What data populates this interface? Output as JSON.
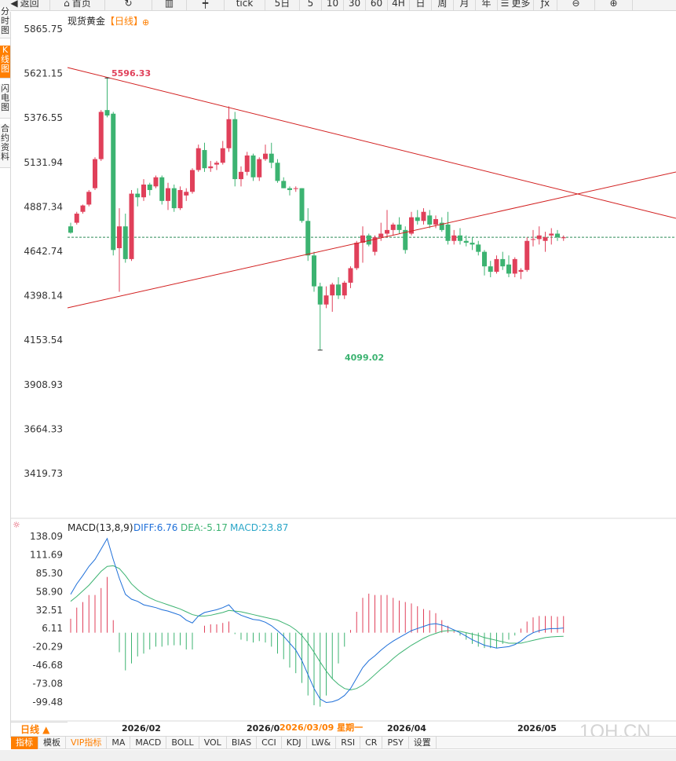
{
  "toolbar": {
    "items": [
      {
        "label": "返回",
        "icon": "back-icon"
      },
      {
        "label": "首页",
        "icon": "home-icon"
      },
      {
        "label": "",
        "icon": "refresh-icon"
      },
      {
        "label": "",
        "icon": "bar-chart-icon"
      },
      {
        "label": "",
        "icon": "candlestick-icon"
      },
      {
        "label": "tick",
        "icon": ""
      },
      {
        "label": "5日",
        "icon": ""
      },
      {
        "label": "5",
        "icon": ""
      },
      {
        "label": "10",
        "icon": ""
      },
      {
        "label": "30",
        "icon": ""
      },
      {
        "label": "60",
        "icon": ""
      },
      {
        "label": "4H",
        "icon": ""
      },
      {
        "label": "日",
        "icon": ""
      },
      {
        "label": "周",
        "icon": ""
      },
      {
        "label": "月",
        "icon": ""
      },
      {
        "label": "年",
        "icon": ""
      },
      {
        "label": "更多",
        "icon": "menu-icon"
      },
      {
        "label": "",
        "icon": "fx-icon"
      },
      {
        "label": "",
        "icon": "zoom-out-icon"
      },
      {
        "label": "",
        "icon": "zoom-in-icon"
      }
    ]
  },
  "side_tabs": [
    {
      "label": "分时图",
      "active": false
    },
    {
      "label": "K线图",
      "active": true
    },
    {
      "label": "闪电图",
      "active": false
    },
    {
      "label": "合约资料",
      "active": false
    }
  ],
  "chart_title": "现货黄金",
  "period_tag": "【日线】",
  "price_axis": [
    "5865.75",
    "5621.15",
    "5376.55",
    "5131.94",
    "4887.34",
    "4642.74",
    "4398.14",
    "4153.54",
    "3908.93",
    "3664.33",
    "3419.73"
  ],
  "high_label": "5596.33",
  "low_label": "4099.02",
  "macd": {
    "title": "MACD(13,8,9)",
    "diff": "DIFF:6.76",
    "dea": "DEA:-5.17",
    "macd": "MACD:23.87",
    "axis": [
      "138.09",
      "111.69",
      "85.30",
      "58.90",
      "32.51",
      "6.11",
      "-20.29",
      "-46.68",
      "-73.08",
      "-99.48"
    ]
  },
  "x_axis": [
    "2026/02",
    "2026/0",
    "2026/04",
    "2026/05"
  ],
  "crosshair_date": "2026/03/09 星期一",
  "period_button": "日线 ▲",
  "indicator_tabs": [
    {
      "label": "指标",
      "active": true,
      "vip": false
    },
    {
      "label": "模板",
      "active": false,
      "vip": false
    },
    {
      "label": "VIP指标",
      "active": false,
      "vip": true
    },
    {
      "label": "MA",
      "active": false,
      "vip": false
    },
    {
      "label": "MACD",
      "active": false,
      "vip": false
    },
    {
      "label": "BOLL",
      "active": false,
      "vip": false
    },
    {
      "label": "VOL",
      "active": false,
      "vip": false
    },
    {
      "label": "BIAS",
      "active": false,
      "vip": false
    },
    {
      "label": "CCI",
      "active": false,
      "vip": false
    },
    {
      "label": "KDJ",
      "active": false,
      "vip": false
    },
    {
      "label": "LW&",
      "active": false,
      "vip": false
    },
    {
      "label": "RSI",
      "active": false,
      "vip": false
    },
    {
      "label": "CR",
      "active": false,
      "vip": false
    },
    {
      "label": "PSY",
      "active": false,
      "vip": false
    },
    {
      "label": "设置",
      "active": false,
      "vip": false
    }
  ],
  "watermark": "1QH.CN",
  "colors": {
    "up": "#e0405a",
    "down": "#3cb371",
    "accent": "#ff7f00",
    "diff": "#1e6fd9",
    "dea": "#3cb371",
    "trendline": "#d22020"
  },
  "chart_data": {
    "type": "candlestick",
    "ohlc": [
      [
        4780,
        4800,
        4740,
        4745
      ],
      [
        4800,
        4860,
        4790,
        4850
      ],
      [
        4860,
        4900,
        4850,
        4895
      ],
      [
        4900,
        4980,
        4890,
        4970
      ],
      [
        4990,
        5160,
        4980,
        5150
      ],
      [
        5150,
        5420,
        5140,
        5410
      ],
      [
        5420,
        5596.33,
        5380,
        5390
      ],
      [
        5400,
        5410,
        4620,
        4650
      ],
      [
        4660,
        4880,
        4420,
        4780
      ],
      [
        4780,
        4850,
        4580,
        4600
      ],
      [
        4600,
        4980,
        4590,
        4960
      ],
      [
        4960,
        4990,
        4890,
        4940
      ],
      [
        4940,
        5040,
        4920,
        5010
      ],
      [
        5010,
        5020,
        4950,
        4980
      ],
      [
        5000,
        5060,
        4990,
        5050
      ],
      [
        5050,
        5060,
        4900,
        4920
      ],
      [
        4920,
        5020,
        4870,
        4990
      ],
      [
        4990,
        5010,
        4860,
        4880
      ],
      [
        4880,
        5000,
        4870,
        4980
      ],
      [
        4950,
        4990,
        4920,
        4970
      ],
      [
        4970,
        5100,
        4960,
        5090
      ],
      [
        5090,
        5230,
        5080,
        5210
      ],
      [
        5200,
        5240,
        5080,
        5100
      ],
      [
        5100,
        5140,
        5080,
        5110
      ],
      [
        5120,
        5140,
        5090,
        5130
      ],
      [
        5130,
        5250,
        5120,
        5210
      ],
      [
        5210,
        5440,
        5190,
        5370
      ],
      [
        5370,
        5410,
        5000,
        5040
      ],
      [
        5040,
        5110,
        5000,
        5080
      ],
      [
        5080,
        5190,
        5060,
        5170
      ],
      [
        5170,
        5180,
        5030,
        5050
      ],
      [
        5050,
        5160,
        5030,
        5150
      ],
      [
        5150,
        5230,
        5140,
        5180
      ],
      [
        5180,
        5240,
        5100,
        5130
      ],
      [
        5130,
        5150,
        5020,
        5030
      ],
      [
        5030,
        5050,
        4990,
        4990
      ],
      [
        4990,
        5000,
        4950,
        4980
      ],
      [
        4990,
        5000,
        4970,
        4990
      ],
      [
        4990,
        4990,
        4800,
        4810
      ],
      [
        4810,
        4880,
        4590,
        4620
      ],
      [
        4620,
        4640,
        4420,
        4450
      ],
      [
        4450,
        4470,
        4099.02,
        4350
      ],
      [
        4350,
        4450,
        4330,
        4400
      ],
      [
        4400,
        4470,
        4310,
        4460
      ],
      [
        4460,
        4500,
        4380,
        4400
      ],
      [
        4400,
        4480,
        4380,
        4470
      ],
      [
        4470,
        4560,
        4440,
        4550
      ],
      [
        4550,
        4700,
        4540,
        4690
      ],
      [
        4690,
        4780,
        4580,
        4730
      ],
      [
        4730,
        4740,
        4670,
        4680
      ],
      [
        4640,
        4730,
        4620,
        4720
      ],
      [
        4720,
        4800,
        4700,
        4740
      ],
      [
        4740,
        4870,
        4720,
        4760
      ],
      [
        4760,
        4800,
        4730,
        4790
      ],
      [
        4790,
        4830,
        4740,
        4760
      ],
      [
        4760,
        4780,
        4630,
        4650
      ],
      [
        4740,
        4860,
        4730,
        4830
      ],
      [
        4830,
        4870,
        4790,
        4810
      ],
      [
        4810,
        4880,
        4790,
        4860
      ],
      [
        4840,
        4870,
        4770,
        4790
      ],
      [
        4790,
        4840,
        4770,
        4820
      ],
      [
        4800,
        4830,
        4750,
        4760
      ],
      [
        4790,
        4860,
        4680,
        4700
      ],
      [
        4700,
        4760,
        4680,
        4730
      ],
      [
        4730,
        4770,
        4680,
        4700
      ],
      [
        4700,
        4730,
        4670,
        4690
      ],
      [
        4690,
        4720,
        4650,
        4680
      ],
      [
        4680,
        4700,
        4620,
        4640
      ],
      [
        4640,
        4650,
        4510,
        4560
      ],
      [
        4560,
        4590,
        4500,
        4530
      ],
      [
        4530,
        4620,
        4520,
        4600
      ],
      [
        4600,
        4640,
        4540,
        4560
      ],
      [
        4570,
        4620,
        4500,
        4520
      ],
      [
        4520,
        4610,
        4500,
        4600
      ],
      [
        4530,
        4550,
        4490,
        4540
      ],
      [
        4540,
        4720,
        4530,
        4700
      ],
      [
        4710,
        4760,
        4670,
        4710
      ],
      [
        4710,
        4780,
        4680,
        4730
      ],
      [
        4700,
        4750,
        4640,
        4720
      ],
      [
        4730,
        4770,
        4680,
        4740
      ],
      [
        4740,
        4760,
        4700,
        4720
      ],
      [
        4715,
        4730,
        4700,
        4720
      ]
    ],
    "macd_diff": [
      55,
      70,
      82,
      95,
      105,
      120,
      135,
      105,
      78,
      55,
      48,
      45,
      40,
      38,
      36,
      33,
      31,
      28,
      25,
      18,
      14,
      24,
      29,
      31,
      33,
      36,
      40,
      30,
      25,
      22,
      19,
      18,
      15,
      10,
      3,
      -5,
      -15,
      -25,
      -40,
      -60,
      -80,
      -95,
      -100,
      -99,
      -96,
      -90,
      -80,
      -65,
      -50,
      -40,
      -33,
      -25,
      -18,
      -12,
      -7,
      -2,
      3,
      6,
      9,
      12,
      13,
      11,
      8,
      4,
      0,
      -5,
      -10,
      -14,
      -18,
      -20,
      -22,
      -21,
      -20,
      -17,
      -12,
      -5,
      0,
      3,
      5,
      6,
      6,
      6.76
    ],
    "macd_dea": [
      45,
      52,
      60,
      68,
      78,
      88,
      95,
      96,
      92,
      82,
      70,
      62,
      55,
      50,
      46,
      43,
      40,
      37,
      34,
      30,
      26,
      24,
      24,
      25,
      27,
      29,
      32,
      31,
      30,
      28,
      26,
      24,
      22,
      20,
      18,
      14,
      10,
      4,
      -4,
      -15,
      -28,
      -42,
      -55,
      -66,
      -74,
      -80,
      -82,
      -80,
      -75,
      -68,
      -60,
      -52,
      -45,
      -37,
      -30,
      -24,
      -18,
      -13,
      -8,
      -4,
      -1,
      2,
      3,
      3,
      2,
      0,
      -2,
      -4,
      -7,
      -9,
      -11,
      -13,
      -15,
      -15,
      -15,
      -13,
      -11,
      -9,
      -7,
      -6,
      -5.5,
      -5.17
    ],
    "macd_hist": [
      20,
      36,
      44,
      54,
      54,
      64,
      80,
      18,
      -28,
      -54,
      -44,
      -34,
      -30,
      -24,
      -20,
      -20,
      -18,
      -18,
      -18,
      -24,
      -24,
      0,
      10,
      12,
      12,
      14,
      16,
      -2,
      -10,
      -12,
      -14,
      -12,
      -14,
      -20,
      -30,
      -38,
      -50,
      -58,
      -72,
      -90,
      -104,
      -106,
      -90,
      -66,
      -44,
      -20,
      4,
      30,
      50,
      56,
      54,
      54,
      54,
      50,
      46,
      44,
      42,
      38,
      34,
      32,
      28,
      18,
      10,
      2,
      -4,
      -10,
      -16,
      -20,
      -22,
      -22,
      -22,
      -16,
      -10,
      -4,
      6,
      16,
      22,
      24,
      24,
      24,
      23,
      23.87
    ]
  }
}
